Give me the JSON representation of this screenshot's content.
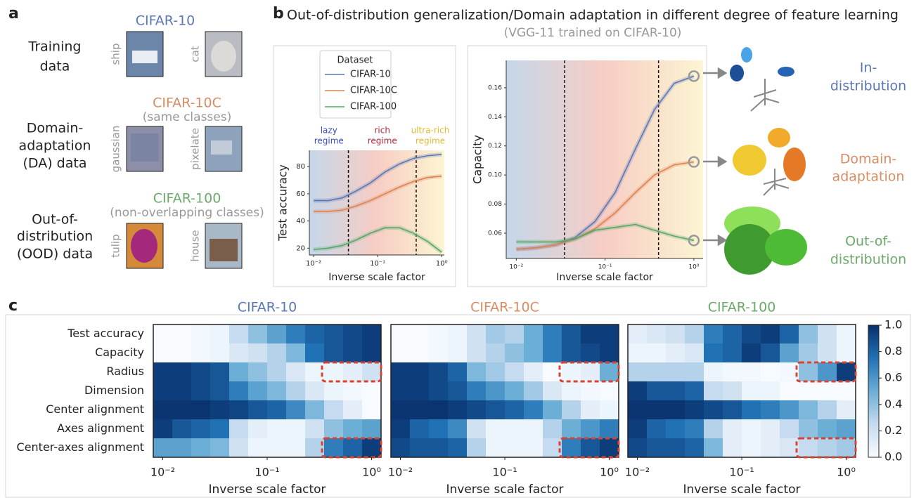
{
  "figure": {
    "panel_labels": [
      "a",
      "b",
      "c"
    ],
    "panel_a": {
      "groups": [
        {
          "heading": "CIFAR-10",
          "color": "#5b78b6",
          "label": [
            "Training",
            "data"
          ],
          "images": [
            "ship",
            "cat"
          ]
        },
        {
          "heading": "CIFAR-10C",
          "subheading": "(same classes)",
          "color": "#d98c62",
          "label": [
            "Domain-",
            "adaptation",
            "(DA) data"
          ],
          "images": [
            "gaussian",
            "pixelate"
          ]
        },
        {
          "heading": "CIFAR-100",
          "subheading": "(non-overlapping classes)",
          "color": "#6aaa6a",
          "label": [
            "Out-of-",
            "distribution",
            "(OOD) data"
          ],
          "images": [
            "tulip",
            "house"
          ]
        }
      ]
    },
    "panel_b": {
      "title": "Out-of-distribution generalization/Domain adaptation in different degree of feature learning",
      "subtitle": "(VGG-11 trained on CIFAR-10)",
      "outcomes": [
        {
          "label": [
            "In-",
            "distribution"
          ],
          "color": "#5b78b6"
        },
        {
          "label": [
            "Domain-",
            "adaptation"
          ],
          "color": "#d98c62"
        },
        {
          "label": [
            "Out-of-",
            "distribution"
          ],
          "color": "#6aaa6a"
        }
      ]
    }
  },
  "chart_data": [
    {
      "type": "line",
      "xscale": "log",
      "ylabel": "Test accuracy",
      "xlabel": "Inverse scale factor",
      "legend_title": "Dataset",
      "x": [
        0.01,
        0.017,
        0.028,
        0.046,
        0.077,
        0.13,
        0.22,
        0.36,
        0.6,
        1
      ],
      "series": [
        {
          "name": "CIFAR-10",
          "color": "#5b78b6",
          "values": [
            55,
            55,
            57,
            62,
            68,
            76,
            82,
            86,
            88,
            89
          ]
        },
        {
          "name": "CIFAR-10C",
          "color": "#dd8452",
          "values": [
            47,
            47,
            48,
            51,
            55,
            60,
            65,
            69,
            72,
            73
          ]
        },
        {
          "name": "CIFAR-100",
          "color": "#55a868",
          "values": [
            19,
            20,
            22,
            26,
            31,
            35,
            35,
            31,
            25,
            17
          ]
        }
      ],
      "regime_boundaries": [
        0.035,
        0.4
      ],
      "regimes": [
        {
          "label": [
            "lazy",
            "regime"
          ],
          "color": "#3b4cc0"
        },
        {
          "label": [
            "rich",
            "regime"
          ],
          "color": "#b0283a"
        },
        {
          "label": [
            "ultra-rich",
            "regime"
          ],
          "color": "#e6b830"
        }
      ],
      "xlim": [
        0.0086,
        1.1
      ],
      "ylim": [
        15,
        92
      ],
      "xticks": [
        {
          "value": 0.01,
          "label": "10⁻²"
        },
        {
          "value": 0.1,
          "label": "10⁻¹"
        },
        {
          "value": 1,
          "label": "10⁰"
        }
      ],
      "yticks": [
        20,
        40,
        60,
        80
      ]
    },
    {
      "type": "line",
      "xscale": "log",
      "ylabel": "Capacity",
      "xlabel": "Inverse scale factor",
      "x": [
        0.01,
        0.017,
        0.028,
        0.046,
        0.077,
        0.13,
        0.22,
        0.36,
        0.6,
        1
      ],
      "series": [
        {
          "color": "#5b78b6",
          "values": [
            0.049,
            0.05,
            0.052,
            0.057,
            0.068,
            0.088,
            0.118,
            0.145,
            0.163,
            0.168
          ]
        },
        {
          "color": "#dd8452",
          "values": [
            0.049,
            0.05,
            0.052,
            0.056,
            0.063,
            0.074,
            0.088,
            0.1,
            0.107,
            0.109
          ]
        },
        {
          "color": "#55a868",
          "values": [
            0.054,
            0.054,
            0.054,
            0.056,
            0.062,
            0.064,
            0.066,
            0.062,
            0.058,
            0.055
          ]
        }
      ],
      "regime_boundaries": [
        0.035,
        0.4
      ],
      "xlim": [
        0.0077,
        1.27
      ],
      "ylim": [
        0.0426,
        0.1788
      ],
      "xticks": [
        {
          "value": 0.01,
          "label": "10⁻²"
        },
        {
          "value": 0.1,
          "label": "10⁻¹"
        },
        {
          "value": 1,
          "label": "10⁰"
        }
      ],
      "yticks": [
        0.06,
        0.08,
        {
          "value": 0.1,
          "label": "0.10"
        },
        0.12,
        0.14,
        0.16
      ]
    },
    {
      "type": "heatmap",
      "title": "CIFAR-10",
      "title_color": "#5b78b6",
      "xlabel": "Inverse scale factor",
      "colormap": "Blues",
      "row_labels": [
        "Test accuracy",
        "Capacity",
        "Radius",
        "Dimension",
        "Center alignment",
        "Axes alignment",
        "Center-axes alignment"
      ],
      "x": [
        0.01,
        0.0152,
        0.0231,
        0.0351,
        0.0534,
        0.0811,
        0.123,
        0.187,
        0.285,
        0.433,
        0.658,
        1
      ],
      "xticks": [
        {
          "value": 0.01,
          "label": "10⁻²"
        },
        {
          "value": 0.1,
          "label": "10⁻¹"
        },
        {
          "value": 1,
          "label": "10⁰"
        }
      ],
      "values": [
        [
          0,
          0,
          0.02,
          0.05,
          0.25,
          0.4,
          0.55,
          0.7,
          0.8,
          0.85,
          0.9,
          0.95
        ],
        [
          0,
          0,
          0.02,
          0.05,
          0.15,
          0.2,
          0.3,
          0.45,
          0.75,
          0.85,
          0.9,
          0.95
        ],
        [
          0.95,
          0.95,
          0.9,
          0.85,
          0.5,
          0.4,
          0.3,
          0.15,
          0.05,
          0.05,
          0.1,
          0.2
        ],
        [
          0.95,
          0.95,
          0.9,
          0.85,
          0.7,
          0.55,
          0.45,
          0.3,
          0.15,
          0.05,
          0.02,
          0
        ],
        [
          0.98,
          0.98,
          0.98,
          0.95,
          0.92,
          0.85,
          0.8,
          0.65,
          0.45,
          0.25,
          0.1,
          0
        ],
        [
          0.95,
          0.85,
          0.8,
          0.75,
          0.25,
          0.1,
          0.05,
          0.05,
          0.2,
          0.4,
          0.5,
          0.55
        ],
        [
          0.55,
          0.55,
          0.5,
          0.45,
          0.2,
          0.05,
          0.05,
          0.05,
          0.3,
          0.7,
          0.8,
          0.95
        ]
      ]
    },
    {
      "type": "heatmap",
      "title": "CIFAR-10C",
      "title_color": "#d98c62",
      "xlabel": "Inverse scale factor",
      "colormap": "Blues",
      "x": [
        0.01,
        0.0152,
        0.0231,
        0.0351,
        0.0534,
        0.0811,
        0.123,
        0.187,
        0.285,
        0.433,
        0.658,
        1
      ],
      "xticks": [
        {
          "value": 0.01,
          "label": "10⁻²"
        },
        {
          "value": 0.1,
          "label": "10⁻¹"
        },
        {
          "value": 1,
          "label": "10⁰"
        }
      ],
      "values": [
        [
          0,
          0,
          0.02,
          0.05,
          0.2,
          0.35,
          0.3,
          0.5,
          0.7,
          0.85,
          0.95,
          0.95
        ],
        [
          0,
          0,
          0.02,
          0.05,
          0.2,
          0.3,
          0.4,
          0.5,
          0.7,
          0.85,
          0.9,
          0.95
        ],
        [
          0.95,
          0.95,
          0.9,
          0.8,
          0.45,
          0.35,
          0.25,
          0.1,
          0,
          0.05,
          0.1,
          0.5
        ],
        [
          0.95,
          0.95,
          0.9,
          0.85,
          0.7,
          0.6,
          0.5,
          0.35,
          0.15,
          0.05,
          0.02,
          0
        ],
        [
          0.98,
          0.98,
          0.98,
          0.95,
          0.9,
          0.85,
          0.8,
          0.7,
          0.5,
          0.3,
          0.1,
          0.05
        ],
        [
          0.95,
          0.8,
          0.75,
          0.65,
          0.2,
          0.05,
          0.05,
          0.05,
          0.3,
          0.5,
          0.6,
          0.7
        ],
        [
          0.9,
          0.85,
          0.85,
          0.8,
          0.3,
          0.05,
          0.05,
          0.05,
          0.25,
          0.7,
          0.85,
          0.95
        ]
      ]
    },
    {
      "type": "heatmap",
      "title": "CIFAR-100",
      "title_color": "#6aaa6a",
      "xlabel": "Inverse scale factor",
      "colormap": "Blues",
      "x": [
        0.01,
        0.0152,
        0.0231,
        0.0351,
        0.0534,
        0.0811,
        0.123,
        0.187,
        0.285,
        0.433,
        0.658,
        1
      ],
      "xticks": [
        {
          "value": 0.01,
          "label": "10⁻²"
        },
        {
          "value": 0.1,
          "label": "10⁻¹"
        },
        {
          "value": 1,
          "label": "10⁰"
        }
      ],
      "values": [
        [
          0.1,
          0.15,
          0.2,
          0.3,
          0.7,
          0.8,
          0.9,
          0.95,
          0.8,
          0.4,
          0.2,
          0.05
        ],
        [
          0.05,
          0.05,
          0.1,
          0.15,
          0.75,
          0.8,
          0.95,
          0.85,
          0.55,
          0.35,
          0.2,
          0.05
        ],
        [
          0.3,
          0.3,
          0.3,
          0.3,
          0.05,
          0.02,
          0.02,
          0,
          0.02,
          0.4,
          0.6,
          0.95
        ],
        [
          0.95,
          0.85,
          0.85,
          0.8,
          0.25,
          0.2,
          0.05,
          0.05,
          0,
          0,
          0,
          0
        ],
        [
          0.98,
          0.98,
          0.98,
          0.95,
          0.9,
          0.85,
          0.75,
          0.7,
          0.6,
          0.45,
          0.3,
          0.1
        ],
        [
          0.95,
          0.8,
          0.75,
          0.7,
          0.3,
          0.1,
          0.05,
          0.1,
          0.25,
          0.4,
          0.5,
          0.55
        ],
        [
          0.9,
          0.85,
          0.85,
          0.8,
          0.45,
          0.1,
          0.05,
          0.1,
          0.15,
          0.25,
          0.3,
          0.35
        ]
      ],
      "colorbar": {
        "range": [
          0,
          1
        ],
        "ticks": [
          {
            "value": 0,
            "label": "0.0"
          },
          {
            "value": 0.2,
            "label": "0.2"
          },
          {
            "value": 0.4,
            "label": "0.4"
          },
          {
            "value": 0.6,
            "label": "0.6"
          },
          {
            "value": 0.8,
            "label": "0.8"
          },
          {
            "value": 1,
            "label": "1.0"
          }
        ]
      }
    }
  ]
}
